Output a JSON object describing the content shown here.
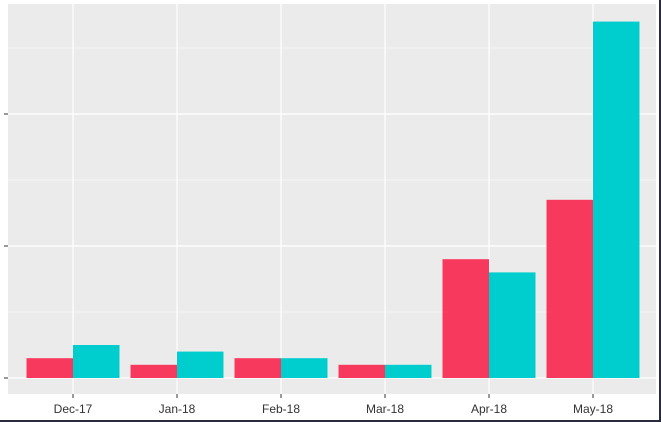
{
  "chart_data": {
    "type": "bar",
    "categories": [
      "Dec-17",
      "Jan-18",
      "Feb-18",
      "Mar-18",
      "Apr-18",
      "May-18"
    ],
    "series": [
      {
        "values": [
          3,
          2,
          3,
          2,
          18,
          27
        ]
      },
      {
        "values": [
          5,
          4,
          3,
          2,
          16,
          54
        ]
      }
    ],
    "colors": [
      "#F8395E",
      "#00CDCD"
    ],
    "title": "",
    "xlabel": "",
    "ylabel": "",
    "ylim": [
      0,
      57
    ],
    "grid": true,
    "legend": "none"
  }
}
